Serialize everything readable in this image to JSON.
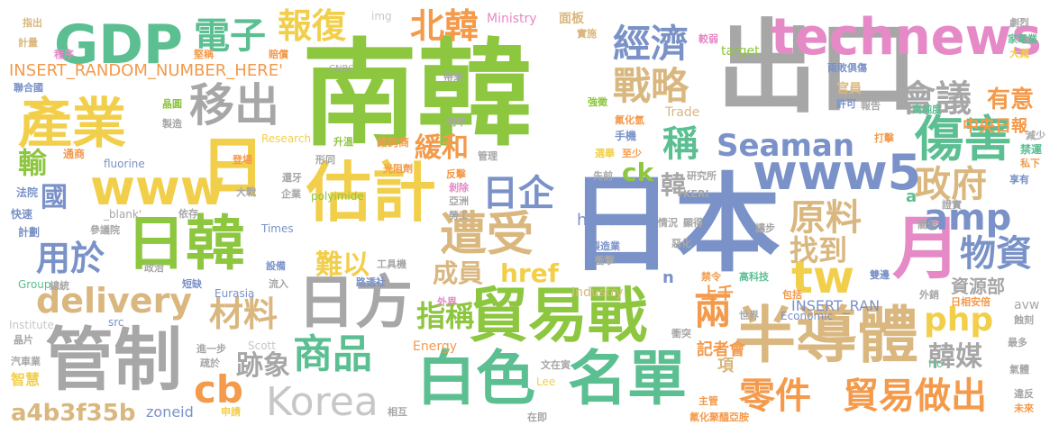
{
  "palette": {
    "green": "#8dc63f",
    "teal": "#5bbf92",
    "blue": "#7a92c8",
    "gray": "#a7a7a7",
    "pink": "#e58ac6",
    "orange": "#f49a4b",
    "tan": "#d9b77f",
    "yellow": "#f2cf4a",
    "lightgray": "#c7c7c7"
  },
  "words": [
    {
      "text": "南韓",
      "color": "#8dc63f"
    },
    {
      "text": "日本",
      "color": "#7a92c8"
    },
    {
      "text": "出口",
      "color": "#a7a7a7"
    },
    {
      "text": "GDP",
      "color": "#5bbf92"
    },
    {
      "text": "technews",
      "color": "#e58ac6"
    },
    {
      "text": "產業",
      "color": "#f2cf4a"
    },
    {
      "text": "日韓",
      "color": "#8dc63f"
    },
    {
      "text": "估計",
      "color": "#f2cf4a"
    },
    {
      "text": "貿易戰",
      "color": "#8dc63f"
    },
    {
      "text": "半導體",
      "color": "#d9b77f"
    },
    {
      "text": "管制",
      "color": "#a7a7a7"
    },
    {
      "text": "白色",
      "color": "#5bbf92"
    },
    {
      "text": "名單",
      "color": "#5bbf92"
    },
    {
      "text": "日方",
      "color": "#a7a7a7"
    },
    {
      "text": "Korea",
      "color": "#c7c7c7"
    },
    {
      "text": "www5",
      "color": "#7a92c8"
    },
    {
      "text": "www",
      "color": "#f2cf4a"
    },
    {
      "text": "日",
      "color": "#f2cf4a"
    },
    {
      "text": "月",
      "color": "#e58ac6"
    },
    {
      "text": "移出",
      "color": "#a7a7a7"
    },
    {
      "text": "遭受",
      "color": "#d9b77f"
    },
    {
      "text": "傷害",
      "color": "#5bbf92"
    },
    {
      "text": "會議",
      "color": "#a7a7a7"
    },
    {
      "text": "經濟",
      "color": "#7a92c8"
    },
    {
      "text": "戰略",
      "color": "#d9b77f"
    },
    {
      "text": "電子",
      "color": "#5bbf92"
    },
    {
      "text": "報復",
      "color": "#f2cf4a"
    },
    {
      "text": "北韓",
      "color": "#f49a4b"
    },
    {
      "text": "Seaman",
      "color": "#7a92c8"
    },
    {
      "text": "amp",
      "color": "#7a92c8"
    },
    {
      "text": "tw",
      "color": "#f2cf4a"
    },
    {
      "text": "原料",
      "color": "#d9b77f"
    },
    {
      "text": "政府",
      "color": "#d9b77f"
    },
    {
      "text": "物資",
      "color": "#7a92c8"
    },
    {
      "text": "php",
      "color": "#f2cf4a"
    },
    {
      "text": "delivery",
      "color": "#d9b77f"
    },
    {
      "text": "用於",
      "color": "#7a92c8"
    },
    {
      "text": "材料",
      "color": "#d9b77f"
    },
    {
      "text": "商品",
      "color": "#5bbf92"
    },
    {
      "text": "cb",
      "color": "#f49a4b"
    },
    {
      "text": "零件",
      "color": "#f49a4b"
    },
    {
      "text": "貿易做出",
      "color": "#f49a4b"
    },
    {
      "text": "a4b3f35b",
      "color": "#d9b77f"
    },
    {
      "text": "日企",
      "color": "#7a92c8"
    },
    {
      "text": "找到",
      "color": "#d9b77f"
    },
    {
      "text": "稱",
      "color": "#5bbf92"
    },
    {
      "text": "兩",
      "color": "#f49a4b"
    },
    {
      "text": "韓媒",
      "color": "#a7a7a7"
    },
    {
      "text": "成員",
      "color": "#d9b77f"
    },
    {
      "text": "指稱",
      "color": "#8dc63f"
    },
    {
      "text": "難以",
      "color": "#f2cf4a"
    },
    {
      "text": "href",
      "color": "#f2cf4a"
    },
    {
      "text": "跡象",
      "color": "#a7a7a7"
    },
    {
      "text": "緩和",
      "color": "#f49a4b"
    },
    {
      "text": "國",
      "color": "#7a92c8"
    },
    {
      "text": "輸",
      "color": "#8dc63f"
    },
    {
      "text": "ck",
      "color": "#8dc63f"
    },
    {
      "text": "韓",
      "color": "#a7a7a7"
    },
    {
      "text": "有意",
      "color": "#f49a4b"
    },
    {
      "text": "中央日報",
      "color": "#f49a4b"
    },
    {
      "text": "上千",
      "color": "#f49a4b"
    },
    {
      "text": "資源部",
      "color": "#a7a7a7"
    },
    {
      "text": "INSERT_RANDOM_NUMBER_HERE'",
      "color": "#f49a4b"
    },
    {
      "text": "INSERT_RAN",
      "color": "#7a92c8"
    },
    {
      "text": "hyeon",
      "color": "#7a92c8"
    },
    {
      "text": "記者會",
      "color": "#f49a4b"
    },
    {
      "text": "Research",
      "color": "#f2cf4a"
    },
    {
      "text": "Industry",
      "color": "#d9b77f"
    },
    {
      "text": "Energy",
      "color": "#f49a4b"
    },
    {
      "text": "Ministry",
      "color": "#e58ac6"
    },
    {
      "text": "Trade",
      "color": "#d9b77f"
    },
    {
      "text": "target",
      "color": "#8dc63f"
    },
    {
      "text": "zoneid",
      "color": "#7a92c8"
    },
    {
      "text": "Economic",
      "color": "#7a92c8"
    },
    {
      "text": "Eurasia",
      "color": "#7a92c8"
    },
    {
      "text": "Group",
      "color": "#5bbf92"
    },
    {
      "text": "Institute",
      "color": "#c7c7c7"
    },
    {
      "text": "Scott",
      "color": "#c7c7c7"
    },
    {
      "text": "Times",
      "color": "#7a92c8"
    },
    {
      "text": "polyimide",
      "color": "#8dc63f"
    },
    {
      "text": "fluorine",
      "color": "#7a92c8"
    },
    {
      "text": "_blank'",
      "color": "#a7a7a7"
    },
    {
      "text": "CNBC",
      "color": "#a7a7a7"
    },
    {
      "text": "img",
      "color": "#c7c7c7"
    },
    {
      "text": "src",
      "color": "#7a92c8"
    },
    {
      "text": "Lee",
      "color": "#f2cf4a"
    },
    {
      "text": "Ho",
      "color": "#5bbf92"
    },
    {
      "text": "avw",
      "color": "#a7a7a7"
    },
    {
      "text": "n",
      "color": "#7a92c8"
    },
    {
      "text": "a",
      "color": "#5bbf92"
    },
    {
      "text": "項",
      "color": "#d9b77f"
    },
    {
      "text": "智慧",
      "color": "#f2cf4a"
    },
    {
      "text": "汽車業",
      "color": "#a7a7a7"
    },
    {
      "text": "晶片",
      "color": "#a7a7a7"
    },
    {
      "text": "總統",
      "color": "#a7a7a7"
    },
    {
      "text": "參議院",
      "color": "#a7a7a7"
    },
    {
      "text": "計劃",
      "color": "#7a92c8"
    },
    {
      "text": "快速",
      "color": "#7a92c8"
    },
    {
      "text": "法院",
      "color": "#7a92c8"
    },
    {
      "text": "通商",
      "color": "#f49a4b"
    },
    {
      "text": "程序",
      "color": "#e58ac6"
    },
    {
      "text": "晶圓",
      "color": "#8dc63f"
    },
    {
      "text": "製造",
      "color": "#a7a7a7"
    },
    {
      "text": "賠償",
      "color": "#f49a4b"
    },
    {
      "text": "堅稱",
      "color": "#f49a4b"
    },
    {
      "text": "聯合國",
      "color": "#7a92c8"
    },
    {
      "text": "計量",
      "color": "#d9b77f"
    },
    {
      "text": "指出",
      "color": "#d9b77f"
    },
    {
      "text": "面板",
      "color": "#d9b77f"
    },
    {
      "text": "實施",
      "color": "#d9b77f"
    },
    {
      "text": "較弱",
      "color": "#e58ac6"
    },
    {
      "text": "兩敗俱傷",
      "color": "#7a92c8"
    },
    {
      "text": "官員",
      "color": "#d9b77f"
    },
    {
      "text": "許可",
      "color": "#7a92c8"
    },
    {
      "text": "報告",
      "color": "#a7a7a7"
    },
    {
      "text": "高純度",
      "color": "#5bbf92"
    },
    {
      "text": "減少",
      "color": "#a7a7a7"
    },
    {
      "text": "禁運",
      "color": "#5bbf92"
    },
    {
      "text": "私下",
      "color": "#f49a4b"
    },
    {
      "text": "享有",
      "color": "#7a92c8"
    },
    {
      "text": "證實",
      "color": "#a7a7a7"
    },
    {
      "text": "外銷",
      "color": "#a7a7a7"
    },
    {
      "text": "日相安倍",
      "color": "#f49a4b"
    },
    {
      "text": "蝕刻",
      "color": "#a7a7a7"
    },
    {
      "text": "最多",
      "color": "#a7a7a7"
    },
    {
      "text": "氣體",
      "color": "#a7a7a7"
    },
    {
      "text": "違反",
      "color": "#a7a7a7"
    },
    {
      "text": "未來",
      "color": "#f49a4b"
    },
    {
      "text": "劇烈",
      "color": "#a7a7a7"
    },
    {
      "text": "家電業",
      "color": "#5bbf92"
    },
    {
      "text": "大減",
      "color": "#f2cf4a"
    },
    {
      "text": "高科技",
      "color": "#5bbf92"
    },
    {
      "text": "禁令",
      "color": "#f49a4b"
    },
    {
      "text": "世界",
      "color": "#a7a7a7"
    },
    {
      "text": "衝突",
      "color": "#a7a7a7"
    },
    {
      "text": "文在寅",
      "color": "#a7a7a7"
    },
    {
      "text": "在即",
      "color": "#a7a7a7"
    },
    {
      "text": "主管",
      "color": "#f49a4b"
    },
    {
      "text": "氟化聚醯亞胺",
      "color": "#f49a4b"
    },
    {
      "text": "申請",
      "color": "#f2cf4a"
    },
    {
      "text": "相互",
      "color": "#a7a7a7"
    },
    {
      "text": "製造業",
      "color": "#7a92c8"
    },
    {
      "text": "衝擊",
      "color": "#a7a7a7"
    },
    {
      "text": "惡化",
      "color": "#a7a7a7"
    },
    {
      "text": "情況",
      "color": "#a7a7a7"
    },
    {
      "text": "顯得",
      "color": "#a7a7a7"
    },
    {
      "text": "研究所",
      "color": "#a7a7a7"
    },
    {
      "text": "KERI",
      "color": "#a7a7a7"
    },
    {
      "text": "亞洲",
      "color": "#a7a7a7"
    },
    {
      "text": "勞工",
      "color": "#a7a7a7"
    },
    {
      "text": "剝除",
      "color": "#e58ac6"
    },
    {
      "text": "反擊",
      "color": "#f49a4b"
    },
    {
      "text": "選舉",
      "color": "#f2cf4a"
    },
    {
      "text": "至少",
      "color": "#f49a4b"
    },
    {
      "text": "手機",
      "color": "#7a92c8"
    },
    {
      "text": "管理",
      "color": "#a7a7a7"
    },
    {
      "text": "諮詢商",
      "color": "#f49a4b"
    },
    {
      "text": "升溫",
      "color": "#8dc63f"
    },
    {
      "text": "光阻劑",
      "color": "#f49a4b"
    },
    {
      "text": "登場",
      "color": "#f49a4b"
    },
    {
      "text": "大戰",
      "color": "#a7a7a7"
    },
    {
      "text": "企業",
      "color": "#a7a7a7"
    },
    {
      "text": "形同",
      "color": "#a7a7a7"
    },
    {
      "text": "還牙",
      "color": "#a7a7a7"
    },
    {
      "text": "依存",
      "color": "#a7a7a7"
    },
    {
      "text": "工具機",
      "color": "#a7a7a7"
    },
    {
      "text": "路透社",
      "color": "#7a92c8"
    },
    {
      "text": "政治",
      "color": "#a7a7a7"
    },
    {
      "text": "設備",
      "color": "#7a92c8"
    },
    {
      "text": "流入",
      "color": "#a7a7a7"
    },
    {
      "text": "短缺",
      "color": "#7a92c8"
    },
    {
      "text": "進一步",
      "color": "#a7a7a7"
    },
    {
      "text": "疏於",
      "color": "#a7a7a7"
    },
    {
      "text": "外界",
      "color": "#e58ac6"
    },
    {
      "text": "明年",
      "color": "#a7a7a7"
    },
    {
      "text": "先前",
      "color": "#a7a7a7"
    },
    {
      "text": "強徵",
      "color": "#8dc63f"
    },
    {
      "text": "帶來",
      "color": "#a7a7a7"
    },
    {
      "text": "氟化氫",
      "color": "#f49a4b"
    },
    {
      "text": "包括",
      "color": "#f49a4b"
    },
    {
      "text": "讓步",
      "color": "#a7a7a7"
    },
    {
      "text": "雙邊",
      "color": "#7a92c8"
    },
    {
      "text": "關係",
      "color": "#a7a7a7"
    },
    {
      "text": "打擊",
      "color": "#f49a4b"
    }
  ]
}
